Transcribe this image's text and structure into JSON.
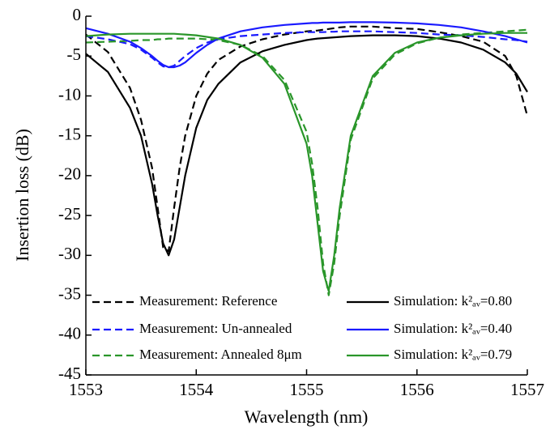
{
  "chart_data": {
    "type": "line",
    "x_label": "Wavelength (nm)",
    "y_label": "Insertion loss (dB)",
    "xlim": [
      1553,
      1557
    ],
    "xticks": [
      1553,
      1554,
      1555,
      1556,
      1557
    ],
    "ylim": [
      -45,
      0
    ],
    "yticks": [
      0,
      -5,
      -10,
      -15,
      -20,
      -25,
      -30,
      -35,
      -40,
      -45
    ],
    "legend": "bottom",
    "x": [
      1553,
      1553.2,
      1553.4,
      1553.5,
      1553.6,
      1553.65,
      1553.7,
      1553.75,
      1553.8,
      1553.85,
      1553.9,
      1554.0,
      1554.1,
      1554.2,
      1554.4,
      1554.6,
      1554.8,
      1555.0,
      1555.05,
      1555.1,
      1555.15,
      1555.2,
      1555.25,
      1555.3,
      1555.4,
      1555.6,
      1555.8,
      1556.0,
      1556.2,
      1556.4,
      1556.6,
      1556.8,
      1556.9,
      1557
    ],
    "series": [
      {
        "name": "Measurement: Reference",
        "color": "#000000",
        "dashed": true,
        "values": [
          -2.3,
          -4.5,
          -9,
          -13,
          -19,
          -24,
          -29,
          -29.5,
          -24,
          -19,
          -15,
          -10,
          -7.2,
          -5.5,
          -3.8,
          -2.9,
          -2.3,
          -1.9,
          -1.85,
          -1.8,
          -1.7,
          -1.6,
          -1.5,
          -1.4,
          -1.3,
          -1.3,
          -1.5,
          -1.6,
          -2.0,
          -2.5,
          -3.2,
          -5,
          -7.5,
          -12.5
        ]
      },
      {
        "name": "Measurement: Un-annealed",
        "color": "#1a1aff",
        "dashed": true,
        "values": [
          -2.5,
          -2.9,
          -3.5,
          -4.2,
          -5.2,
          -5.8,
          -6.3,
          -6.4,
          -6.2,
          -5.6,
          -5,
          -4,
          -3.3,
          -2.9,
          -2.5,
          -2.3,
          -2.1,
          -2.0,
          -2.0,
          -2.0,
          -2.0,
          -1.95,
          -1.95,
          -1.9,
          -1.9,
          -1.9,
          -2.0,
          -2.1,
          -2.3,
          -2.4,
          -2.6,
          -2.9,
          -3.0,
          -3.2
        ]
      },
      {
        "name": "Measurement: Annealed 8μm",
        "color": "#2a962a",
        "dashed": true,
        "values": [
          -3.3,
          -3.2,
          -3.1,
          -3.0,
          -3.0,
          -2.9,
          -2.9,
          -2.8,
          -2.8,
          -2.8,
          -2.8,
          -2.8,
          -2.9,
          -3.0,
          -3.6,
          -5,
          -8,
          -14.5,
          -18.5,
          -24,
          -31,
          -35,
          -31,
          -25,
          -15.5,
          -7.8,
          -4.8,
          -3.4,
          -2.7,
          -2.3,
          -2.1,
          -1.9,
          -1.8,
          -1.7
        ]
      },
      {
        "name": "Simulation: k²ₐᵥ=0.80",
        "color": "#000000",
        "dashed": false,
        "values": [
          -4.7,
          -7,
          -11.5,
          -15,
          -21,
          -25,
          -28.5,
          -30,
          -28,
          -24,
          -20,
          -14,
          -10.5,
          -8.5,
          -5.8,
          -4.4,
          -3.6,
          -3.0,
          -2.9,
          -2.8,
          -2.75,
          -2.7,
          -2.65,
          -2.6,
          -2.5,
          -2.4,
          -2.4,
          -2.5,
          -2.8,
          -3.3,
          -4.2,
          -5.8,
          -7.2,
          -9.5
        ]
      },
      {
        "name": "Simulation: k²ₐᵥ=0.40",
        "color": "#1a1aff",
        "dashed": false,
        "values": [
          -1.5,
          -2.2,
          -3.2,
          -4,
          -5,
          -5.6,
          -6.1,
          -6.4,
          -6.4,
          -6.2,
          -5.8,
          -4.6,
          -3.6,
          -2.8,
          -1.9,
          -1.4,
          -1.1,
          -0.9,
          -0.85,
          -0.85,
          -0.8,
          -0.8,
          -0.8,
          -0.8,
          -0.75,
          -0.75,
          -0.8,
          -0.9,
          -1.1,
          -1.4,
          -1.9,
          -2.5,
          -2.9,
          -3.3
        ]
      },
      {
        "name": "Simulation: k²ₐᵥ=0.79",
        "color": "#2a962a",
        "dashed": false,
        "values": [
          -2.5,
          -2.3,
          -2.2,
          -2.2,
          -2.2,
          -2.2,
          -2.2,
          -2.2,
          -2.2,
          -2.25,
          -2.3,
          -2.4,
          -2.6,
          -2.8,
          -3.6,
          -5.2,
          -8.5,
          -16,
          -20,
          -26,
          -32,
          -34.5,
          -30,
          -24,
          -15,
          -7.5,
          -4.6,
          -3.3,
          -2.7,
          -2.4,
          -2.2,
          -2.1,
          -2.1,
          -2.1
        ]
      }
    ]
  }
}
